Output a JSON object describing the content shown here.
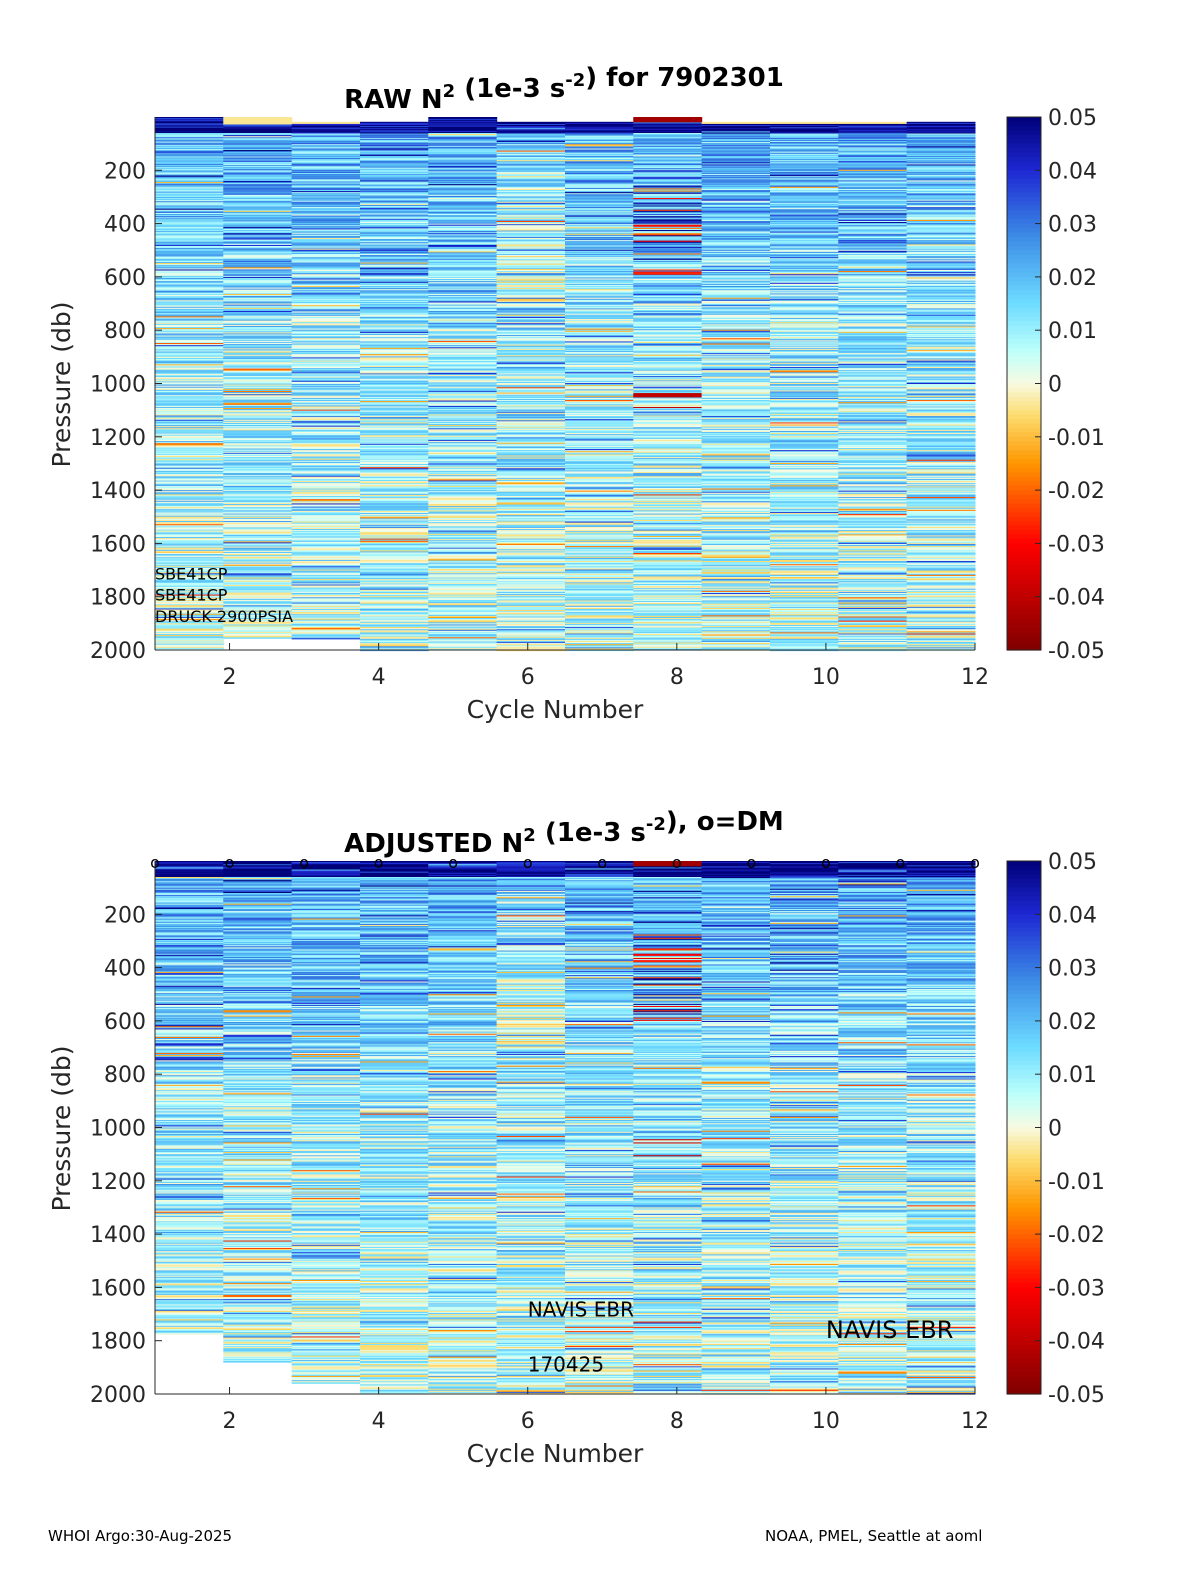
{
  "chart_data": [
    {
      "type": "heatmap",
      "title_prefix": "RAW N",
      "title_sup1": "2",
      "title_mid": " (1e-3 s",
      "title_sup2": "-2",
      "title_suffix": ") for 7902301",
      "xlabel": "Cycle Number",
      "ylabel": "Pressure (db)",
      "xlim": [
        1,
        12
      ],
      "ylim": [
        0,
        2000
      ],
      "x_ticks": [
        2,
        4,
        6,
        8,
        10,
        12
      ],
      "y_ticks": [
        200,
        400,
        600,
        800,
        1000,
        1200,
        1400,
        1600,
        1800,
        2000
      ],
      "cycles": [
        1,
        2,
        3,
        4,
        5,
        6,
        7,
        8,
        9,
        10,
        11,
        12
      ],
      "profile_max_pressure": [
        1998,
        1955,
        1958,
        2000,
        2000,
        2000,
        2000,
        2000,
        2000,
        2000,
        2000,
        2000
      ],
      "profile_min_pressure": [
        0,
        0,
        18,
        18,
        0,
        18,
        18,
        0,
        18,
        18,
        18,
        18
      ],
      "dm_markers": false,
      "annotations": [
        {
          "text": "SBE41CP",
          "x": 1.0,
          "y": 1735
        },
        {
          "text": "SBE41CP",
          "x": 1.0,
          "y": 1815
        },
        {
          "text": "DRUCK 2900PSIA",
          "x": 1.0,
          "y": 1895
        }
      ],
      "colorbar": {
        "min": -0.05,
        "max": 0.05,
        "ticks": [
          "0.05",
          "0.04",
          "0.03",
          "0.02",
          "0.01",
          "0",
          "-0.01",
          "-0.02",
          "-0.03",
          "-0.04",
          "-0.05"
        ]
      }
    },
    {
      "type": "heatmap",
      "title_prefix": "ADJUSTED N",
      "title_sup1": "2",
      "title_mid": " (1e-3 s",
      "title_sup2": "-2",
      "title_suffix": "), o=DM",
      "xlabel": "Cycle Number",
      "ylabel": "Pressure (db)",
      "xlim": [
        1,
        12
      ],
      "ylim": [
        0,
        2000
      ],
      "x_ticks": [
        2,
        4,
        6,
        8,
        10,
        12
      ],
      "y_ticks": [
        200,
        400,
        600,
        800,
        1000,
        1200,
        1400,
        1600,
        1800,
        2000
      ],
      "cycles": [
        1,
        2,
        3,
        4,
        5,
        6,
        7,
        8,
        9,
        10,
        11,
        12
      ],
      "profile_max_pressure": [
        1775,
        1880,
        1958,
        2000,
        2000,
        2000,
        2000,
        2000,
        2000,
        2000,
        2000,
        2000
      ],
      "profile_min_pressure": [
        0,
        0,
        0,
        0,
        0,
        0,
        0,
        0,
        0,
        0,
        0,
        0
      ],
      "dm_markers": true,
      "dm_marker_symbol": "o",
      "annotations": [
        {
          "text": "NAVIS EBR",
          "x": 6.0,
          "y": 1710
        },
        {
          "text": "170425",
          "x": 6.0,
          "y": 1915
        },
        {
          "text": "NAVIS EBR",
          "x": 10.0,
          "y": 1790,
          "large": true
        }
      ],
      "colorbar": {
        "min": -0.05,
        "max": 0.05,
        "ticks": [
          "0.05",
          "0.04",
          "0.03",
          "0.02",
          "0.01",
          "0",
          "-0.01",
          "-0.02",
          "-0.03",
          "-0.04",
          "-0.05"
        ]
      }
    }
  ],
  "footer": {
    "left": "WHOI Argo:30-Aug-2025",
    "right": "NOAA, PMEL, Seattle at aoml"
  }
}
